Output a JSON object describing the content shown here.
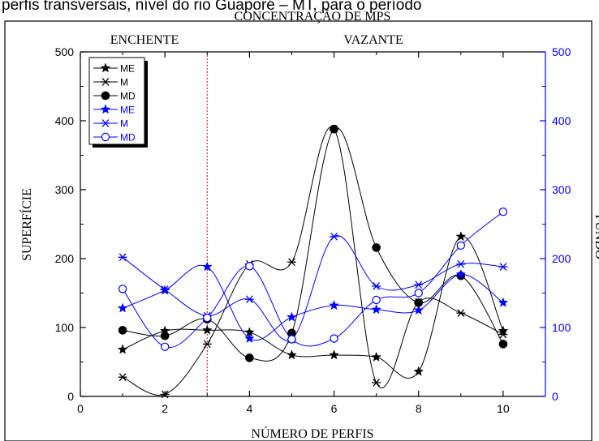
{
  "caption_fragment": "perfis transversais, nível do rio Guaporé – MT, para o período",
  "chart_data": {
    "type": "line",
    "title": "CONCENTRAÇÃO DE MPS",
    "xlabel": "NÚMERO DE PERFIS",
    "ylabel_left": "SUPERFÍCIE",
    "ylabel_right": "FUNDO",
    "xlim": [
      0,
      11
    ],
    "ylim_left": [
      0,
      500
    ],
    "ylim_right": [
      0,
      500
    ],
    "x_ticks": [
      "0",
      "2",
      "4",
      "6",
      "8",
      "10"
    ],
    "y_ticks_left": [
      "0",
      "100",
      "200",
      "300",
      "400",
      "500"
    ],
    "y_ticks_right": [
      "0",
      "100",
      "200",
      "300",
      "400",
      "500"
    ],
    "annotations": {
      "left": "ENCHENTE",
      "right": "VAZANTE"
    },
    "divider_x": 3,
    "x": [
      1,
      2,
      3,
      4,
      5,
      6,
      7,
      8,
      9,
      10
    ],
    "series": [
      {
        "name": "ME",
        "axis": "left",
        "marker": "star",
        "color": "#000000",
        "values": [
          68,
          95,
          96,
          93,
          60,
          60,
          57,
          36,
          232,
          95
        ]
      },
      {
        "name": "M",
        "axis": "left",
        "marker": "asterisk",
        "color": "#000000",
        "values": [
          28,
          3,
          76,
          192,
          195,
          388,
          20,
          137,
          121,
          90
        ]
      },
      {
        "name": "MD",
        "axis": "left",
        "marker": "circle-filled",
        "color": "#000000",
        "values": [
          96,
          88,
          112,
          56,
          92,
          388,
          216,
          136,
          175,
          76
        ]
      },
      {
        "name": "ME",
        "axis": "right",
        "marker": "star",
        "color": "#0000ff",
        "values": [
          128,
          154,
          188,
          84,
          115,
          132,
          126,
          125,
          177,
          136
        ]
      },
      {
        "name": "M",
        "axis": "right",
        "marker": "asterisk",
        "color": "#0000ff",
        "values": [
          202,
          155,
          117,
          141,
          83,
          232,
          160,
          162,
          192,
          188
        ]
      },
      {
        "name": "MD",
        "axis": "right",
        "marker": "circle-open",
        "color": "#0000ff",
        "values": [
          156,
          72,
          114,
          189,
          83,
          84,
          140,
          150,
          219,
          268
        ]
      }
    ],
    "legend_position": "top-left",
    "grid": false
  }
}
